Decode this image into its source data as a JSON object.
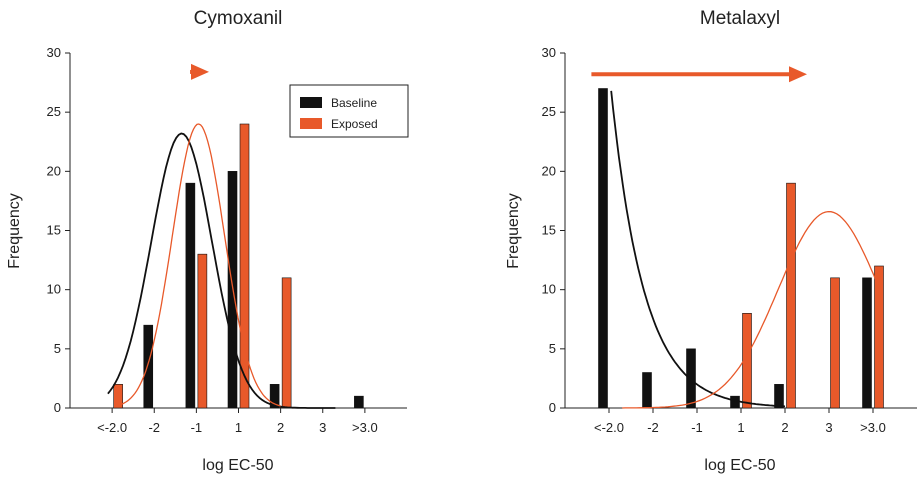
{
  "colors": {
    "baseline": "#111111",
    "exposed": "#e8592a",
    "axis": "#222222"
  },
  "legend": {
    "items": [
      "Baseline",
      "Exposed"
    ]
  },
  "chart_data": [
    {
      "type": "bar",
      "title": "Cymoxanil",
      "xlabel": "log EC-50",
      "ylabel": "Frequency",
      "ylim": [
        0,
        30
      ],
      "yticks": [
        0,
        5,
        10,
        15,
        20,
        25,
        30
      ],
      "categories": [
        "<-2.0",
        "-2",
        "-1",
        "1",
        "2",
        "3",
        ">3.0"
      ],
      "series": [
        {
          "name": "Baseline",
          "values": [
            0,
            7,
            19,
            20,
            2,
            0,
            1
          ]
        },
        {
          "name": "Exposed",
          "values": [
            2,
            0,
            13,
            24,
            11,
            0,
            0
          ]
        }
      ],
      "curves": {
        "Baseline": {
          "peak": 23.2,
          "center_category": 1.65,
          "spread": 0.72,
          "from": -0.1,
          "to": 5.3
        },
        "Exposed": {
          "peak": 24.0,
          "center_category": 2.05,
          "spread": 0.62,
          "from": 0.2,
          "to": 4.0
        }
      },
      "arrow": {
        "from_category": 1.85,
        "to_category": 2.3,
        "at_value": 28.4
      },
      "legend_shown": true,
      "legend_position": "top-right",
      "grid": false
    },
    {
      "type": "bar",
      "title": "Metalaxyl",
      "xlabel": "log EC-50",
      "ylabel": "Frequency",
      "ylim": [
        0,
        30
      ],
      "yticks": [
        0,
        5,
        10,
        15,
        20,
        25,
        30
      ],
      "categories": [
        "<-2.0",
        "-2",
        "-1",
        "1",
        "2",
        "3",
        ">3.0"
      ],
      "series": [
        {
          "name": "Baseline",
          "values": [
            27,
            3,
            5,
            1,
            2,
            0,
            11
          ]
        },
        {
          "name": "Exposed",
          "values": [
            0,
            0,
            0,
            8,
            19,
            11,
            12
          ]
        }
      ],
      "curves": {
        "Baseline": {
          "peak": 26.8,
          "center_category": 0.05,
          "decay": 0.75,
          "from": 0.05,
          "to": 4.0
        },
        "Exposed": {
          "peak": 16.6,
          "center_category": 5.0,
          "spread": 1.15,
          "from": 0.3,
          "to": 6.15
        }
      },
      "arrow": {
        "from_category": -0.4,
        "to_category": 4.5,
        "at_value": 28.2
      },
      "legend_shown": false,
      "grid": false
    }
  ]
}
